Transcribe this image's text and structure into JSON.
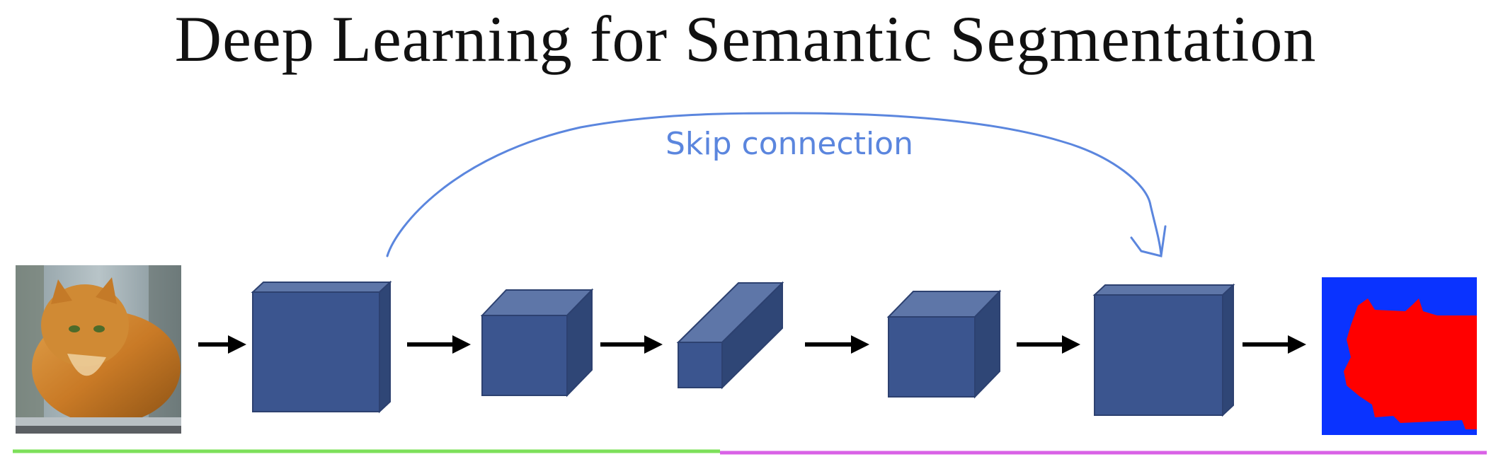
{
  "title": "Deep Learning for Semantic Segmentation",
  "skip_label": "Skip connection",
  "colors": {
    "box_front": "#3b558f",
    "box_top": "#5e76a8",
    "box_side": "#2f4676",
    "box_edge": "#2d4170",
    "arrow": "#000000",
    "skip": "#5b86de",
    "encoder_line": "#7de05a",
    "decoder_line": "#d962e6",
    "seg_background": "#0a33ff",
    "seg_object": "#ff0000"
  },
  "icons": [
    "cat-photo",
    "segmentation-mask-icon",
    "right-arrow-icon"
  ]
}
